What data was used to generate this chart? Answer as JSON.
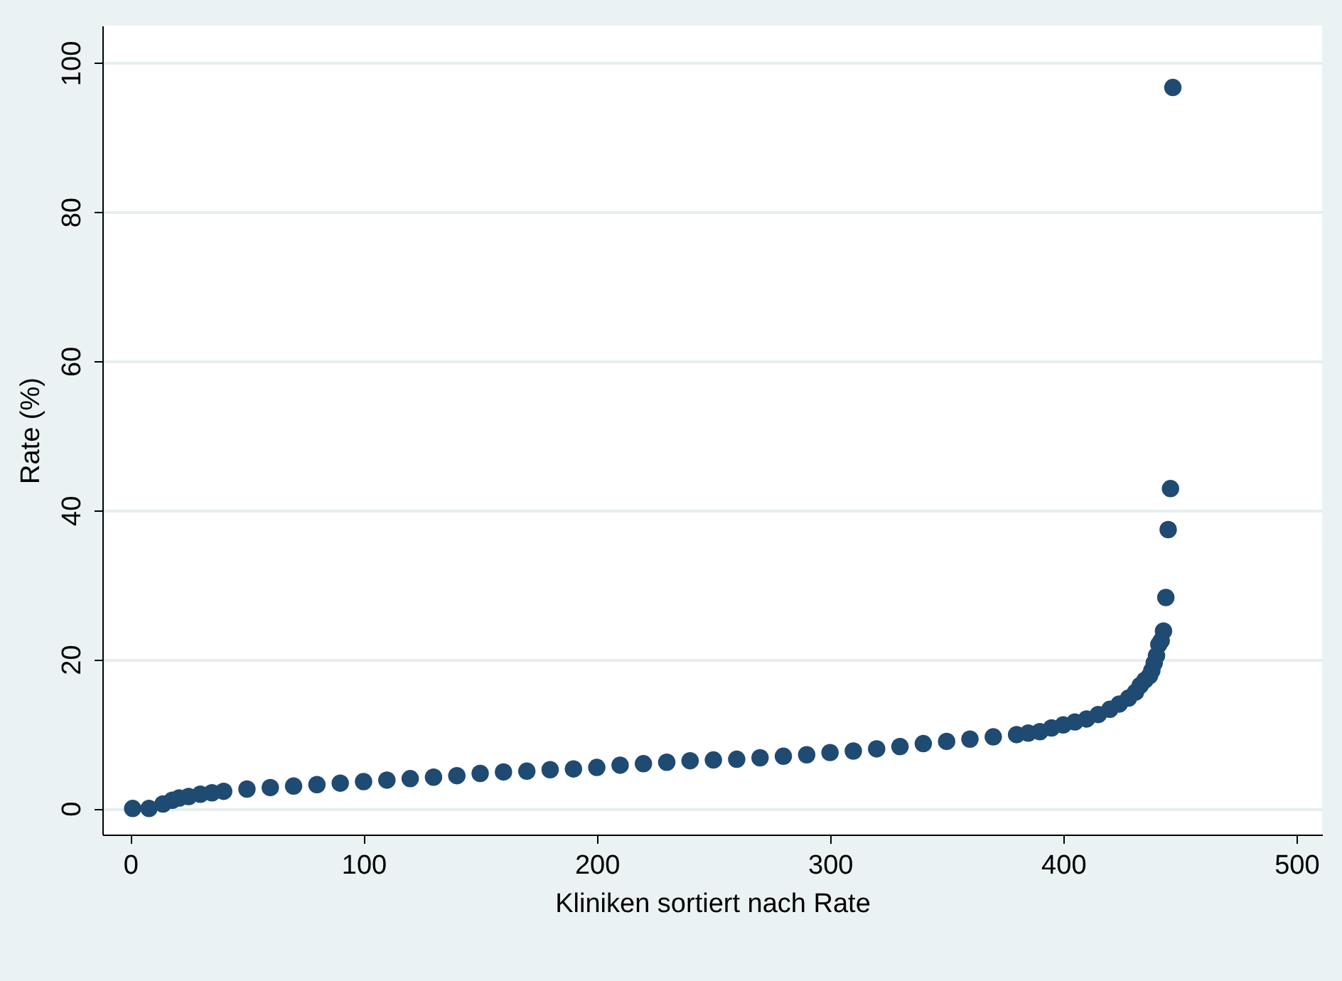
{
  "chart_data": {
    "type": "scatter",
    "xlabel": "Kliniken sortiert nach Rate",
    "ylabel": "Rate (%)",
    "xlim": [
      -12,
      511
    ],
    "ylim": [
      -3.5,
      105
    ],
    "xticks": [
      0,
      100,
      200,
      300,
      400,
      500
    ],
    "yticks": [
      0,
      20,
      40,
      60,
      80,
      100
    ],
    "grid": "y",
    "marker": "circle",
    "series": [
      {
        "color": "#1f4a72",
        "x": [
          1,
          8,
          14,
          18,
          21,
          25,
          30,
          35,
          40,
          50,
          60,
          70,
          80,
          90,
          100,
          110,
          120,
          130,
          140,
          150,
          160,
          170,
          180,
          190,
          200,
          210,
          220,
          230,
          240,
          250,
          260,
          270,
          280,
          290,
          300,
          310,
          320,
          330,
          340,
          350,
          360,
          370,
          380,
          385,
          390,
          395,
          400,
          405,
          410,
          415,
          420,
          424,
          428,
          431,
          433,
          435,
          437,
          438,
          439,
          440,
          441,
          442,
          443,
          444,
          445,
          446,
          447
        ],
        "values": [
          0,
          0,
          0.6,
          1.1,
          1.4,
          1.6,
          1.9,
          2.1,
          2.3,
          2.6,
          2.8,
          3.0,
          3.2,
          3.4,
          3.6,
          3.8,
          4.0,
          4.2,
          4.4,
          4.7,
          4.9,
          5.0,
          5.2,
          5.3,
          5.5,
          5.8,
          6.0,
          6.2,
          6.4,
          6.5,
          6.6,
          6.8,
          7.0,
          7.2,
          7.5,
          7.7,
          8.0,
          8.3,
          8.7,
          9.0,
          9.3,
          9.6,
          9.9,
          10.1,
          10.3,
          10.8,
          11.2,
          11.6,
          12.0,
          12.6,
          13.3,
          14.0,
          14.8,
          15.6,
          16.5,
          17.2,
          17.8,
          18.5,
          19.5,
          20.5,
          22.0,
          22.5,
          23.8,
          28.3,
          37.4,
          42.9,
          96.7
        ]
      }
    ]
  }
}
